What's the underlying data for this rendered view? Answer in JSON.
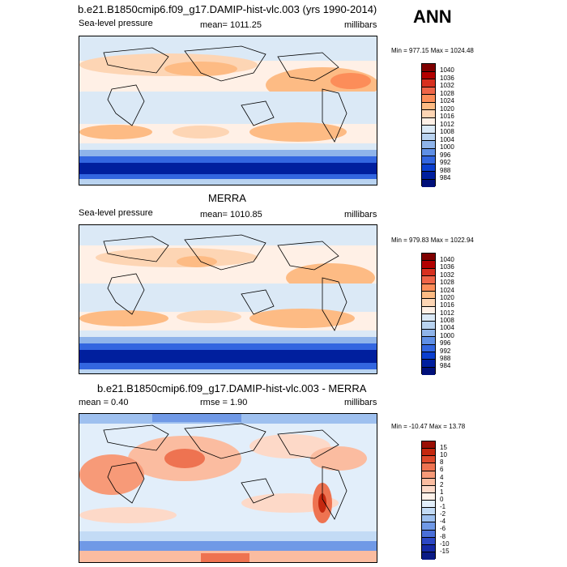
{
  "anno": "ANN",
  "panels": [
    {
      "title": "b.e21.B1850cmip6.f09_g17.DAMIP-hist-vlc.003 (yrs 1990-2014)",
      "left_label": "Sea-level pressure",
      "center_label": "mean= 1011.25",
      "right_label": "millibars",
      "minmax": "Min = 977.15 Max = 1024.48",
      "colorbar": {
        "labels": [
          "1040",
          "1036",
          "1032",
          "1028",
          "1024",
          "1020",
          "1016",
          "1012",
          "1008",
          "1004",
          "1000",
          "996",
          "992",
          "988",
          "984"
        ],
        "colors": [
          "#7f0000",
          "#b30000",
          "#d7301f",
          "#ef6548",
          "#fc8d59",
          "#fdbb84",
          "#fdd5b4",
          "#fff0e6",
          "#dbe9f6",
          "#b9d3f0",
          "#8fb4ea",
          "#5f8fe6",
          "#3366e0",
          "#0b3fcf",
          "#001f9e",
          "#00107a"
        ]
      }
    },
    {
      "title": "MERRA",
      "left_label": "Sea-level pressure",
      "center_label": "mean= 1010.85",
      "right_label": "millibars",
      "minmax": "Min = 979.83 Max = 1022.94",
      "colorbar": {
        "labels": [
          "1040",
          "1036",
          "1032",
          "1028",
          "1024",
          "1020",
          "1016",
          "1012",
          "1008",
          "1004",
          "1000",
          "996",
          "992",
          "988",
          "984"
        ],
        "colors": [
          "#7f0000",
          "#b30000",
          "#d7301f",
          "#ef6548",
          "#fc8d59",
          "#fdbb84",
          "#fdd5b4",
          "#fff0e6",
          "#dbe9f6",
          "#b9d3f0",
          "#8fb4ea",
          "#5f8fe6",
          "#3366e0",
          "#0b3fcf",
          "#001f9e",
          "#00107a"
        ]
      }
    },
    {
      "title": "b.e21.B1850cmip6.f09_g17.DAMIP-hist-vlc.003 - MERRA",
      "left_label": "mean =   0.40",
      "center_label": "rmse =   1.90",
      "right_label": "millibars",
      "minmax": "Min = -10.47 Max =  13.78",
      "colorbar": {
        "labels": [
          "15",
          "10",
          "8",
          "6",
          "4",
          "2",
          "1",
          "0",
          "-1",
          "-2",
          "-4",
          "-6",
          "-8",
          "-10",
          "-15"
        ],
        "colors": [
          "#9a0f05",
          "#c4280f",
          "#de4a2c",
          "#ee7351",
          "#f79a78",
          "#fbbca0",
          "#fdd9c8",
          "#fff2ea",
          "#e2eefa",
          "#c3dbf5",
          "#9ec0ef",
          "#7099e6",
          "#4a6fd9",
          "#2c47c4",
          "#1529a6",
          "#0a1a85"
        ]
      }
    }
  ]
}
